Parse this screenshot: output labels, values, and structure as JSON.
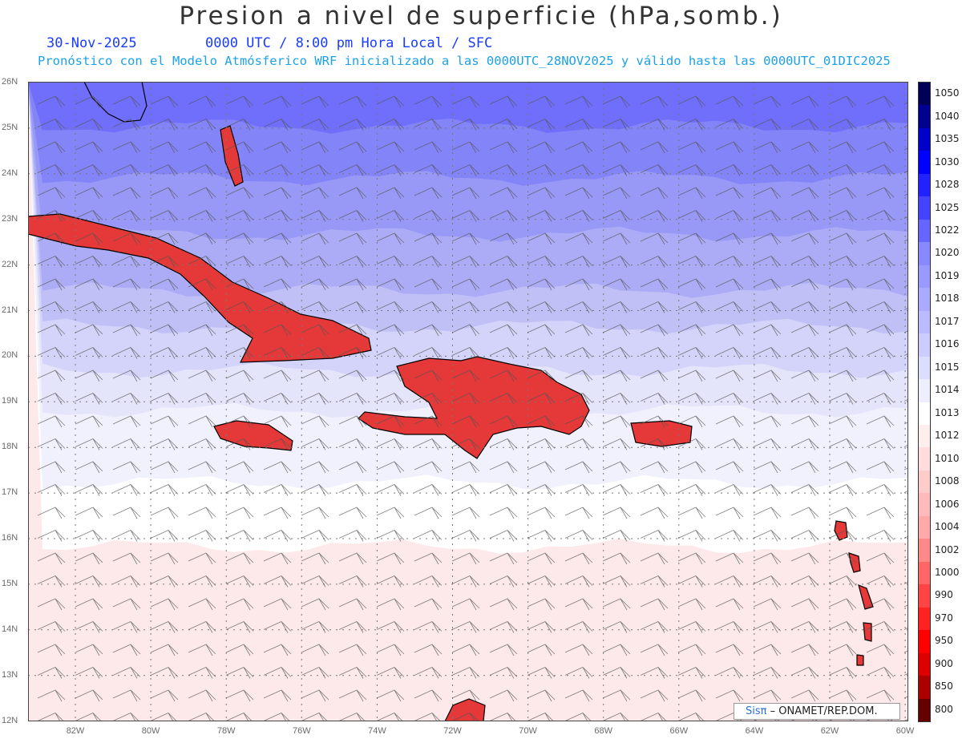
{
  "title": "Presion a nivel de superficie (hPa,somb.)",
  "valid_date": "30-Nov-2025",
  "valid_time": "0000 UTC / 8:00 pm Hora Local / SFC",
  "forecast_info": "Pronóstico con el Modelo Atmósferico WRF inicializado a las 0000UTC_28NOV2025 y válido hasta las  0000UTC_01DIC2025",
  "credit": {
    "sis": "Sisπ",
    "org": " – ONAMET/REP.DOM."
  },
  "map": {
    "lat_labels": [
      "26N",
      "25N",
      "24N",
      "23N",
      "22N",
      "21N",
      "20N",
      "19N",
      "18N",
      "17N",
      "16N",
      "15N",
      "14N",
      "13N",
      "12N"
    ],
    "lon_labels": [
      "82W",
      "80W",
      "78W",
      "76W",
      "74W",
      "72W",
      "70W",
      "68W",
      "66W",
      "64W",
      "62W",
      "60W"
    ],
    "pressure_bands": [
      {
        "level": "1025",
        "color": "#6f6ffb"
      },
      {
        "level": "1022",
        "color": "#8484f9"
      },
      {
        "level": "1020",
        "color": "#9898f6"
      },
      {
        "level": "1019",
        "color": "#acacf6"
      },
      {
        "level": "1018",
        "color": "#c0c0f7"
      },
      {
        "level": "1017",
        "color": "#d4d4fa"
      },
      {
        "level": "1016",
        "color": "#e4e4fb"
      },
      {
        "level": "1015",
        "color": "#f1f1fd"
      },
      {
        "level": "1014",
        "color": "#ffffff"
      },
      {
        "level": "1013",
        "color": "#fde9e9"
      }
    ],
    "land_color": "#e53838"
  },
  "colorbar": {
    "levels": [
      "1050",
      "1040",
      "1035",
      "1030",
      "1028",
      "1025",
      "1022",
      "1020",
      "1019",
      "1018",
      "1017",
      "1016",
      "1015",
      "1014",
      "1013",
      "1012",
      "1010",
      "1008",
      "1006",
      "1004",
      "1002",
      "1000",
      "990",
      "970",
      "950",
      "900",
      "850",
      "800"
    ],
    "colors": [
      "#000055",
      "#000090",
      "#0000c8",
      "#0000ff",
      "#2222ff",
      "#4444ff",
      "#6666ff",
      "#8888ff",
      "#9999ff",
      "#aaaaff",
      "#bbbbff",
      "#ccccff",
      "#ddddff",
      "#eeeeff",
      "#ffffff",
      "#ffeeee",
      "#ffdddd",
      "#ffcccc",
      "#ffbbbb",
      "#ffaaaa",
      "#ff8888",
      "#ff6666",
      "#ff4444",
      "#ff2222",
      "#ff0000",
      "#dd0000",
      "#aa0000",
      "#660000"
    ]
  }
}
